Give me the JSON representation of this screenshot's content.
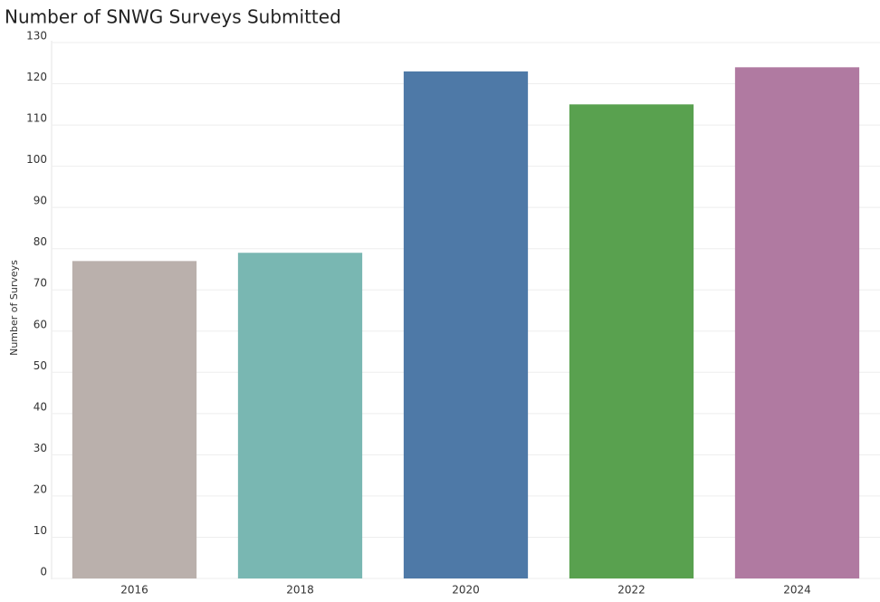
{
  "chart_data": {
    "type": "bar",
    "title": "Number of SNWG Surveys Submitted",
    "y_label": "Number of Surveys",
    "categories": [
      "2016",
      "2018",
      "2020",
      "2022",
      "2024"
    ],
    "values": [
      77,
      79,
      123,
      115,
      124
    ],
    "colors": [
      "#bab0ac",
      "#79b7b2",
      "#4e79a7",
      "#59a14f",
      "#b07aa1"
    ],
    "ylim": [
      0,
      130
    ],
    "yticks": [
      0,
      10,
      20,
      30,
      40,
      50,
      60,
      70,
      80,
      90,
      100,
      110,
      120,
      130
    ],
    "grid": true
  }
}
